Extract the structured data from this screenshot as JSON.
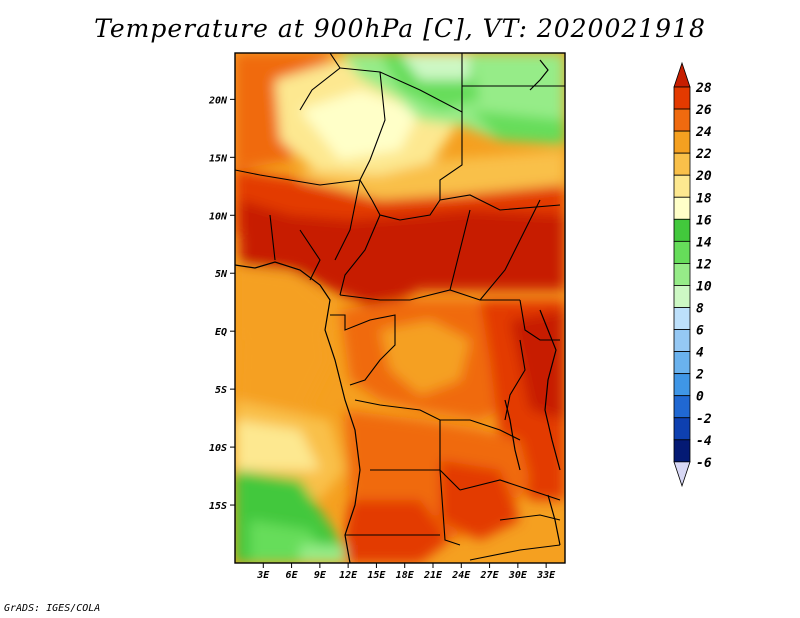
{
  "title": "Temperature at 900hPa [C], VT: 2020021918",
  "credit": "GrADS: IGES/COLA",
  "map": {
    "lon_range": [
      0,
      35
    ],
    "lat_range": [
      -20,
      24
    ],
    "lat_ticks": [
      {
        "value": 20,
        "label": "20N"
      },
      {
        "value": 15,
        "label": "15N"
      },
      {
        "value": 10,
        "label": "10N"
      },
      {
        "value": 5,
        "label": "5N"
      },
      {
        "value": 0,
        "label": "EQ"
      },
      {
        "value": -5,
        "label": "5S"
      },
      {
        "value": -10,
        "label": "10S"
      },
      {
        "value": -15,
        "label": "15S"
      }
    ],
    "lon_ticks": [
      {
        "value": 3,
        "label": "3E"
      },
      {
        "value": 6,
        "label": "6E"
      },
      {
        "value": 9,
        "label": "9E"
      },
      {
        "value": 12,
        "label": "12E"
      },
      {
        "value": 15,
        "label": "15E"
      },
      {
        "value": 18,
        "label": "18E"
      },
      {
        "value": 21,
        "label": "21E"
      },
      {
        "value": 24,
        "label": "24E"
      },
      {
        "value": 27,
        "label": "27E"
      },
      {
        "value": 30,
        "label": "30E"
      },
      {
        "value": 33,
        "label": "33E"
      }
    ]
  },
  "colorbar": {
    "levels": [
      "28",
      "26",
      "24",
      "22",
      "20",
      "18",
      "16",
      "14",
      "12",
      "10",
      "8",
      "6",
      "4",
      "2",
      "0",
      "-2",
      "-4",
      "-6"
    ],
    "colors": [
      "#c71e00",
      "#e33a00",
      "#f06a0f",
      "#f5a020",
      "#f9c04a",
      "#fde890",
      "#ffffc8",
      "#42c83c",
      "#66dd5a",
      "#96ec88",
      "#cdf8c4",
      "#bde0fb",
      "#95c8f4",
      "#6ab2ee",
      "#3f96e6",
      "#2068d2",
      "#0e40b0",
      "#041a74",
      "#d8d8f5"
    ]
  }
}
